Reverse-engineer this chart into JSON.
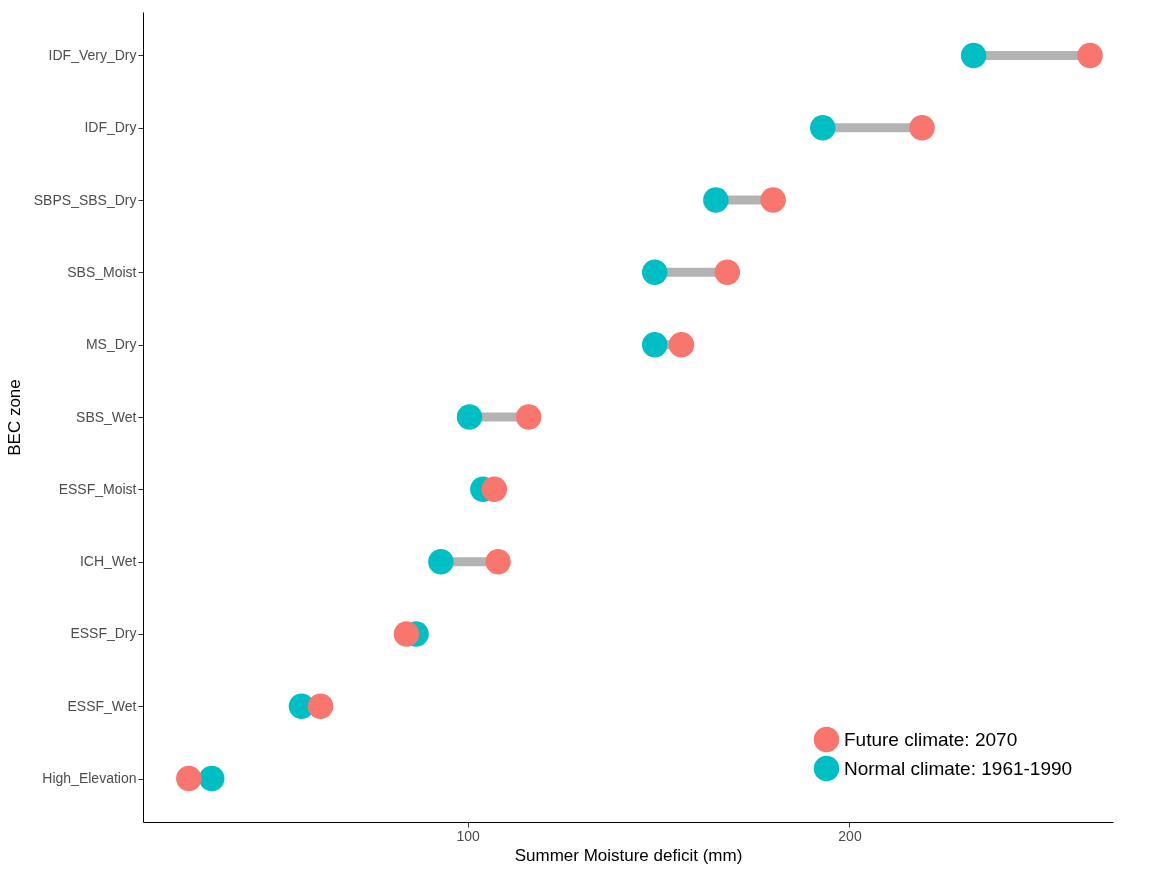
{
  "chart_data": {
    "type": "scatter",
    "orientation": "horizontal",
    "xlabel": "Summer Moisture deficit (mm)",
    "ylabel": "BEC zone",
    "categories": [
      "IDF_Very_Dry",
      "IDF_Dry",
      "SBPS_SBS_Dry",
      "SBS_Moist",
      "MS_Dry",
      "SBS_Wet",
      "ESSF_Moist",
      "ICH_Wet",
      "ESSF_Dry",
      "ESSF_Wet",
      "High_Elevation"
    ],
    "series": [
      {
        "name": "Future climate: 2070",
        "color": "#f8766d",
        "values": [
          263,
          219,
          180,
          168,
          156,
          116,
          107,
          108,
          84,
          61.5,
          27
        ]
      },
      {
        "name": "Normal climate: 1961-1990",
        "color": "#00bfc4",
        "values": [
          232.5,
          193,
          165,
          149,
          149,
          100.5,
          104,
          93,
          86.5,
          56.5,
          33
        ]
      }
    ],
    "xlim": [
      15,
      269
    ],
    "xticks": [
      100,
      200
    ],
    "grid": false,
    "legend": "bottom right",
    "marker": "circle"
  }
}
